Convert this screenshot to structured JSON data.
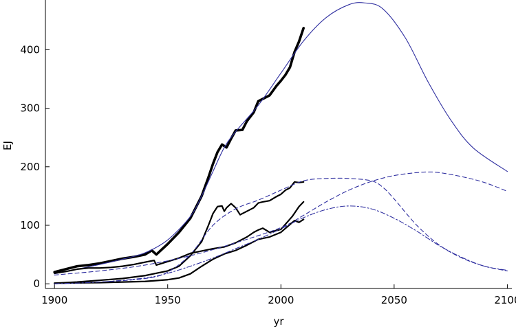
{
  "chart_data": {
    "type": "line",
    "title": "",
    "xlabel": "yr",
    "ylabel": "EJ",
    "xlim": [
      1896,
      2102
    ],
    "ylim": [
      -8,
      485
    ],
    "xticks": [
      1900,
      1950,
      2000,
      2050,
      2100
    ],
    "yticks": [
      0,
      100,
      200,
      300,
      400
    ],
    "grid": false,
    "legend": "none",
    "series": [
      {
        "name": "total-historical",
        "style": "solid-thick",
        "color": "#000000",
        "x": [
          1900,
          1905,
          1910,
          1915,
          1920,
          1925,
          1930,
          1935,
          1940,
          1943,
          1945,
          1950,
          1955,
          1960,
          1965,
          1968,
          1970,
          1972,
          1974,
          1976,
          1978,
          1980,
          1983,
          1985,
          1988,
          1990,
          1992,
          1995,
          1998,
          2000,
          2002,
          2004,
          2006,
          2008,
          2010
        ],
        "y": [
          20,
          25,
          30,
          32,
          35,
          39,
          43,
          46,
          50,
          57,
          50,
          68,
          88,
          112,
          150,
          182,
          205,
          225,
          238,
          233,
          248,
          262,
          263,
          278,
          293,
          312,
          316,
          322,
          338,
          347,
          357,
          370,
          396,
          414,
          437
        ]
      },
      {
        "name": "total-model",
        "style": "solid-thin",
        "color": "#2f2fa0",
        "x": [
          1900,
          1910,
          1920,
          1930,
          1940,
          1950,
          1960,
          1965,
          1970,
          1975,
          1980,
          1990,
          2000,
          2010,
          2020,
          2030,
          2037,
          2045,
          2055,
          2065,
          2075,
          2085,
          2100
        ],
        "y": [
          17,
          25,
          33,
          42,
          53,
          75,
          115,
          150,
          192,
          233,
          260,
          305,
          360,
          415,
          455,
          477,
          480,
          470,
          420,
          345,
          280,
          232,
          192
        ]
      },
      {
        "name": "oil-historical",
        "style": "solid-medium",
        "color": "#000000",
        "x": [
          1900,
          1910,
          1920,
          1930,
          1940,
          1945,
          1950,
          1955,
          1960,
          1965,
          1968,
          1970,
          1972,
          1974,
          1975,
          1976,
          1978,
          1980,
          1982,
          1983,
          1985,
          1988,
          1990,
          1992,
          1995,
          1998,
          2000,
          2002,
          2004,
          2006,
          2008,
          2010
        ],
        "y": [
          1,
          3,
          6,
          9,
          14,
          18,
          22,
          30,
          48,
          72,
          100,
          120,
          132,
          133,
          124,
          130,
          137,
          130,
          118,
          120,
          124,
          130,
          138,
          140,
          142,
          149,
          153,
          160,
          164,
          174,
          173,
          174
        ]
      },
      {
        "name": "oil-model",
        "style": "dashed",
        "color": "#2f2fa0",
        "x": [
          1900,
          1920,
          1940,
          1950,
          1960,
          1970,
          1980,
          1990,
          2000,
          2010,
          2020,
          2030,
          2040,
          2045,
          2050,
          2060,
          2070,
          2080,
          2090,
          2100
        ],
        "y": [
          0,
          3,
          9,
          20,
          50,
          100,
          128,
          143,
          160,
          176,
          180,
          180,
          176,
          165,
          145,
          100,
          66,
          44,
          30,
          22
        ]
      },
      {
        "name": "coal-historical",
        "style": "solid-medium",
        "color": "#000000",
        "x": [
          1900,
          1905,
          1910,
          1915,
          1920,
          1925,
          1930,
          1935,
          1940,
          1944,
          1945,
          1950,
          1955,
          1960,
          1965,
          1970,
          1975,
          1980,
          1985,
          1988,
          1990,
          1992,
          1995,
          2000,
          2005,
          2008,
          2010
        ],
        "y": [
          18,
          21,
          25,
          27,
          27,
          28,
          30,
          33,
          37,
          40,
          32,
          38,
          44,
          52,
          56,
          60,
          63,
          70,
          80,
          88,
          92,
          95,
          88,
          93,
          115,
          132,
          140
        ]
      },
      {
        "name": "coal-model",
        "style": "dashed",
        "color": "#2f2fa0",
        "x": [
          1900,
          1920,
          1940,
          1960,
          1980,
          2000,
          2010,
          2020,
          2030,
          2040,
          2050,
          2060,
          2065,
          2070,
          2080,
          2090,
          2100
        ],
        "y": [
          15,
          22,
          32,
          48,
          70,
          96,
          117,
          140,
          160,
          175,
          185,
          190,
          191,
          190,
          183,
          173,
          158
        ]
      },
      {
        "name": "gas-historical",
        "style": "solid-medium",
        "color": "#000000",
        "x": [
          1900,
          1920,
          1940,
          1950,
          1955,
          1960,
          1965,
          1970,
          1975,
          1980,
          1985,
          1990,
          1995,
          2000,
          2003,
          2006,
          2008,
          2010
        ],
        "y": [
          1,
          2,
          4,
          7,
          10,
          17,
          30,
          42,
          51,
          57,
          66,
          76,
          80,
          88,
          98,
          108,
          105,
          110
        ]
      },
      {
        "name": "gas-model",
        "style": "dash-dot",
        "color": "#2f2fa0",
        "x": [
          1900,
          1920,
          1940,
          1950,
          1960,
          1970,
          1980,
          1990,
          2000,
          2010,
          2020,
          2030,
          2040,
          2050,
          2060,
          2070,
          2080,
          2090,
          2100
        ],
        "y": [
          0,
          3,
          10,
          18,
          30,
          44,
          60,
          76,
          94,
          113,
          127,
          133,
          128,
          112,
          90,
          65,
          45,
          30,
          23
        ]
      }
    ]
  }
}
